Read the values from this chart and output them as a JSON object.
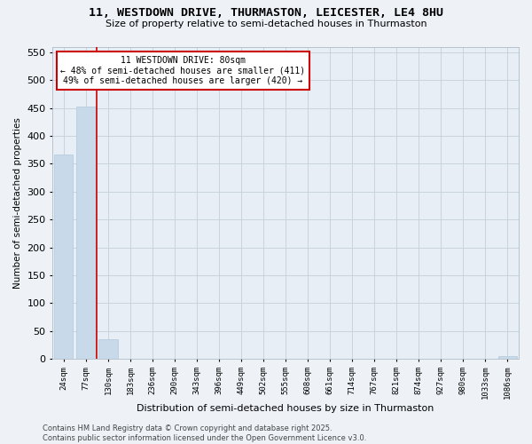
{
  "title1": "11, WESTDOWN DRIVE, THURMASTON, LEICESTER, LE4 8HU",
  "title2": "Size of property relative to semi-detached houses in Thurmaston",
  "xlabel": "Distribution of semi-detached houses by size in Thurmaston",
  "ylabel": "Number of semi-detached properties",
  "categories": [
    "24sqm",
    "77sqm",
    "130sqm",
    "183sqm",
    "236sqm",
    "290sqm",
    "343sqm",
    "396sqm",
    "449sqm",
    "502sqm",
    "555sqm",
    "608sqm",
    "661sqm",
    "714sqm",
    "767sqm",
    "821sqm",
    "874sqm",
    "927sqm",
    "980sqm",
    "1033sqm",
    "1086sqm"
  ],
  "values": [
    367,
    452,
    36,
    0,
    0,
    0,
    0,
    0,
    0,
    0,
    0,
    0,
    0,
    0,
    0,
    0,
    0,
    0,
    0,
    0,
    5
  ],
  "bar_color": "#c8daea",
  "bar_edge_color": "#b0c8dc",
  "annotation_title": "11 WESTDOWN DRIVE: 80sqm",
  "annotation_line1": "← 48% of semi-detached houses are smaller (411)",
  "annotation_line2": "49% of semi-detached houses are larger (420) →",
  "annotation_box_color": "#ffffff",
  "annotation_box_edge": "#cc0000",
  "vline_color": "#cc0000",
  "ylim": [
    0,
    560
  ],
  "yticks": [
    0,
    50,
    100,
    150,
    200,
    250,
    300,
    350,
    400,
    450,
    500,
    550
  ],
  "footer1": "Contains HM Land Registry data © Crown copyright and database right 2025.",
  "footer2": "Contains public sector information licensed under the Open Government Licence v3.0.",
  "bg_color": "#eef2f7",
  "plot_bg_color": "#e8eef5",
  "grid_color": "#c5cfd9"
}
